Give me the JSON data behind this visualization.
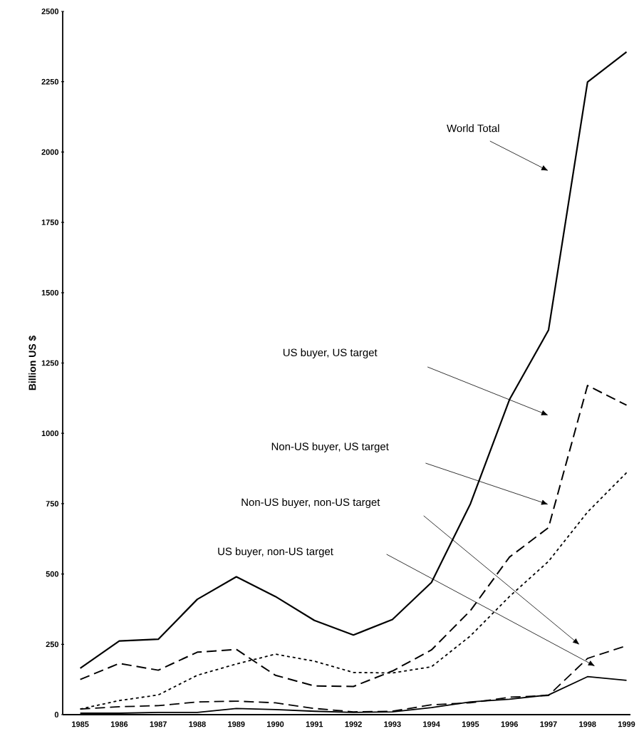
{
  "chart_data": {
    "type": "line",
    "ylabel": "Billion US $",
    "categories": [
      "1985",
      "1986",
      "1987",
      "1988",
      "1989",
      "1990",
      "1991",
      "1992",
      "1993",
      "1994",
      "1995",
      "1996",
      "1997",
      "1998",
      "1999"
    ],
    "ylim": [
      0,
      2500
    ],
    "yticks": [
      0,
      250,
      500,
      750,
      1000,
      1250,
      1500,
      1750,
      2000,
      2250,
      2500
    ],
    "series": [
      {
        "color": "#000000",
        "line_style": "solid",
        "values": [
          165,
          262,
          268,
          410,
          490,
          420,
          335,
          283,
          338,
          470,
          750,
          1120,
          1367,
          2249,
          2356
        ]
      },
      {
        "color": "#000000",
        "line_style": "dashed",
        "values": [
          125,
          182,
          158,
          222,
          232,
          140,
          102,
          100,
          155,
          230,
          370,
          560,
          665,
          1170,
          1100
        ]
      },
      {
        "color": "#000000",
        "line_style": "dotted",
        "values": [
          20,
          50,
          70,
          140,
          180,
          215,
          190,
          150,
          148,
          170,
          280,
          420,
          545,
          720,
          860
        ]
      },
      {
        "color": "#000000",
        "line_style": "dashed",
        "values": [
          20,
          28,
          32,
          45,
          48,
          42,
          22,
          10,
          12,
          35,
          42,
          62,
          68,
          200,
          245
        ]
      },
      {
        "color": "#000000",
        "line_style": "solid",
        "values": [
          5,
          5,
          8,
          8,
          22,
          18,
          12,
          8,
          10,
          25,
          45,
          55,
          70,
          135,
          122
        ]
      }
    ],
    "annotations": [
      "World Total",
      "US buyer, US target",
      "Non-US buyer, US target",
      "Non-US buyer, non-US target",
      "US buyer, non-US target"
    ]
  }
}
